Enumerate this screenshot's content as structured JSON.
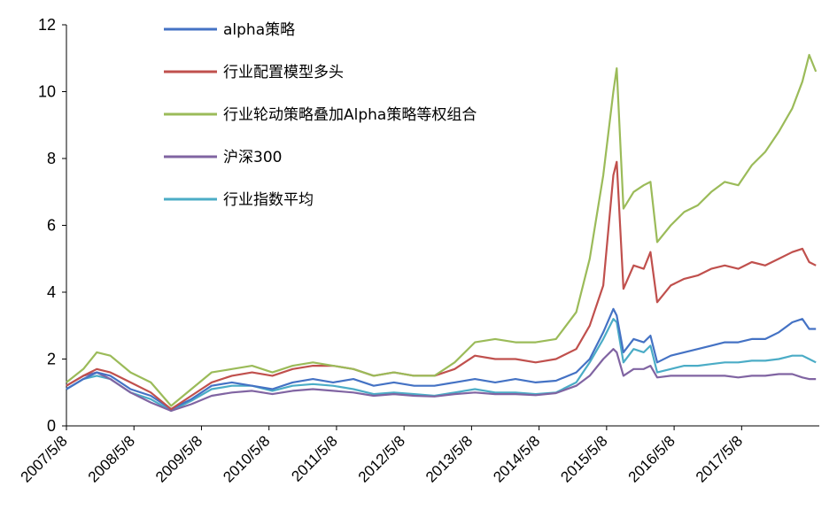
{
  "chart_data": {
    "type": "line",
    "title": "",
    "xlabel": "",
    "ylabel": "",
    "ylim": [
      0,
      12
    ],
    "yticks": [
      "0",
      "2",
      "4",
      "6",
      "8",
      "10",
      "12"
    ],
    "xticks": [
      "2007/5/8",
      "2008/5/8",
      "2009/5/8",
      "2010/5/8",
      "2011/5/8",
      "2012/5/8",
      "2013/5/8",
      "2014/5/8",
      "2015/5/8",
      "2016/5/8",
      "2017/5/8"
    ],
    "legend_position": "top-left",
    "grid": false,
    "x": [
      2007.35,
      2007.6,
      2007.8,
      2008.0,
      2008.3,
      2008.6,
      2008.9,
      2009.2,
      2009.5,
      2009.8,
      2010.1,
      2010.4,
      2010.7,
      2011.0,
      2011.3,
      2011.6,
      2011.9,
      2012.2,
      2012.5,
      2012.8,
      2013.1,
      2013.4,
      2013.7,
      2014.0,
      2014.3,
      2014.6,
      2014.9,
      2015.1,
      2015.3,
      2015.45,
      2015.5,
      2015.6,
      2015.75,
      2015.9,
      2016.0,
      2016.1,
      2016.3,
      2016.5,
      2016.7,
      2016.9,
      2017.1,
      2017.3,
      2017.5,
      2017.7,
      2017.9,
      2018.1,
      2018.25,
      2018.35,
      2018.45
    ],
    "series": [
      {
        "name": "alpha策略",
        "color": "#4472C4",
        "values": [
          1.1,
          1.4,
          1.6,
          1.5,
          1.1,
          0.9,
          0.5,
          0.8,
          1.2,
          1.3,
          1.2,
          1.1,
          1.3,
          1.4,
          1.3,
          1.4,
          1.2,
          1.3,
          1.2,
          1.2,
          1.3,
          1.4,
          1.3,
          1.4,
          1.3,
          1.35,
          1.6,
          2.0,
          2.8,
          3.5,
          3.3,
          2.2,
          2.6,
          2.5,
          2.7,
          1.9,
          2.1,
          2.2,
          2.3,
          2.4,
          2.5,
          2.5,
          2.6,
          2.6,
          2.8,
          3.1,
          3.2,
          2.9,
          2.9
        ]
      },
      {
        "name": "行业配置模型多头",
        "color": "#C0504D",
        "values": [
          1.2,
          1.5,
          1.7,
          1.6,
          1.3,
          1.0,
          0.5,
          0.9,
          1.3,
          1.5,
          1.6,
          1.5,
          1.7,
          1.8,
          1.8,
          1.7,
          1.5,
          1.6,
          1.5,
          1.5,
          1.7,
          2.1,
          2.0,
          2.0,
          1.9,
          2.0,
          2.3,
          3.0,
          4.2,
          7.5,
          7.9,
          4.1,
          4.8,
          4.7,
          5.2,
          3.7,
          4.2,
          4.4,
          4.5,
          4.7,
          4.8,
          4.7,
          4.9,
          4.8,
          5.0,
          5.2,
          5.3,
          4.9,
          4.8
        ]
      },
      {
        "name": "行业轮动策略叠加Alpha策略等权组合",
        "color": "#9BBB59",
        "values": [
          1.3,
          1.7,
          2.2,
          2.1,
          1.6,
          1.3,
          0.6,
          1.1,
          1.6,
          1.7,
          1.8,
          1.6,
          1.8,
          1.9,
          1.8,
          1.7,
          1.5,
          1.6,
          1.5,
          1.5,
          1.9,
          2.5,
          2.6,
          2.5,
          2.5,
          2.6,
          3.4,
          5.0,
          7.5,
          10.0,
          10.7,
          6.5,
          7.0,
          7.2,
          7.3,
          5.5,
          6.0,
          6.4,
          6.6,
          7.0,
          7.3,
          7.2,
          7.8,
          8.2,
          8.8,
          9.5,
          10.3,
          11.1,
          10.6
        ]
      },
      {
        "name": "沪深300",
        "color": "#8064A2",
        "values": [
          1.2,
          1.5,
          1.6,
          1.4,
          1.0,
          0.7,
          0.45,
          0.65,
          0.9,
          1.0,
          1.05,
          0.95,
          1.05,
          1.1,
          1.05,
          1.0,
          0.9,
          0.95,
          0.9,
          0.88,
          0.95,
          1.0,
          0.95,
          0.95,
          0.92,
          0.98,
          1.2,
          1.5,
          2.0,
          2.3,
          2.2,
          1.5,
          1.7,
          1.7,
          1.8,
          1.45,
          1.5,
          1.5,
          1.5,
          1.5,
          1.5,
          1.45,
          1.5,
          1.5,
          1.55,
          1.55,
          1.45,
          1.4,
          1.4
        ]
      },
      {
        "name": "行业指数平均",
        "color": "#4BACC6",
        "values": [
          1.1,
          1.4,
          1.5,
          1.4,
          1.0,
          0.8,
          0.45,
          0.75,
          1.1,
          1.2,
          1.2,
          1.05,
          1.2,
          1.25,
          1.2,
          1.1,
          0.95,
          1.0,
          0.95,
          0.9,
          1.0,
          1.1,
          1.0,
          1.0,
          0.95,
          1.0,
          1.3,
          1.9,
          2.6,
          3.2,
          3.1,
          1.9,
          2.3,
          2.2,
          2.4,
          1.6,
          1.7,
          1.8,
          1.8,
          1.85,
          1.9,
          1.9,
          1.95,
          1.95,
          2.0,
          2.1,
          2.1,
          2.0,
          1.9
        ]
      }
    ]
  }
}
